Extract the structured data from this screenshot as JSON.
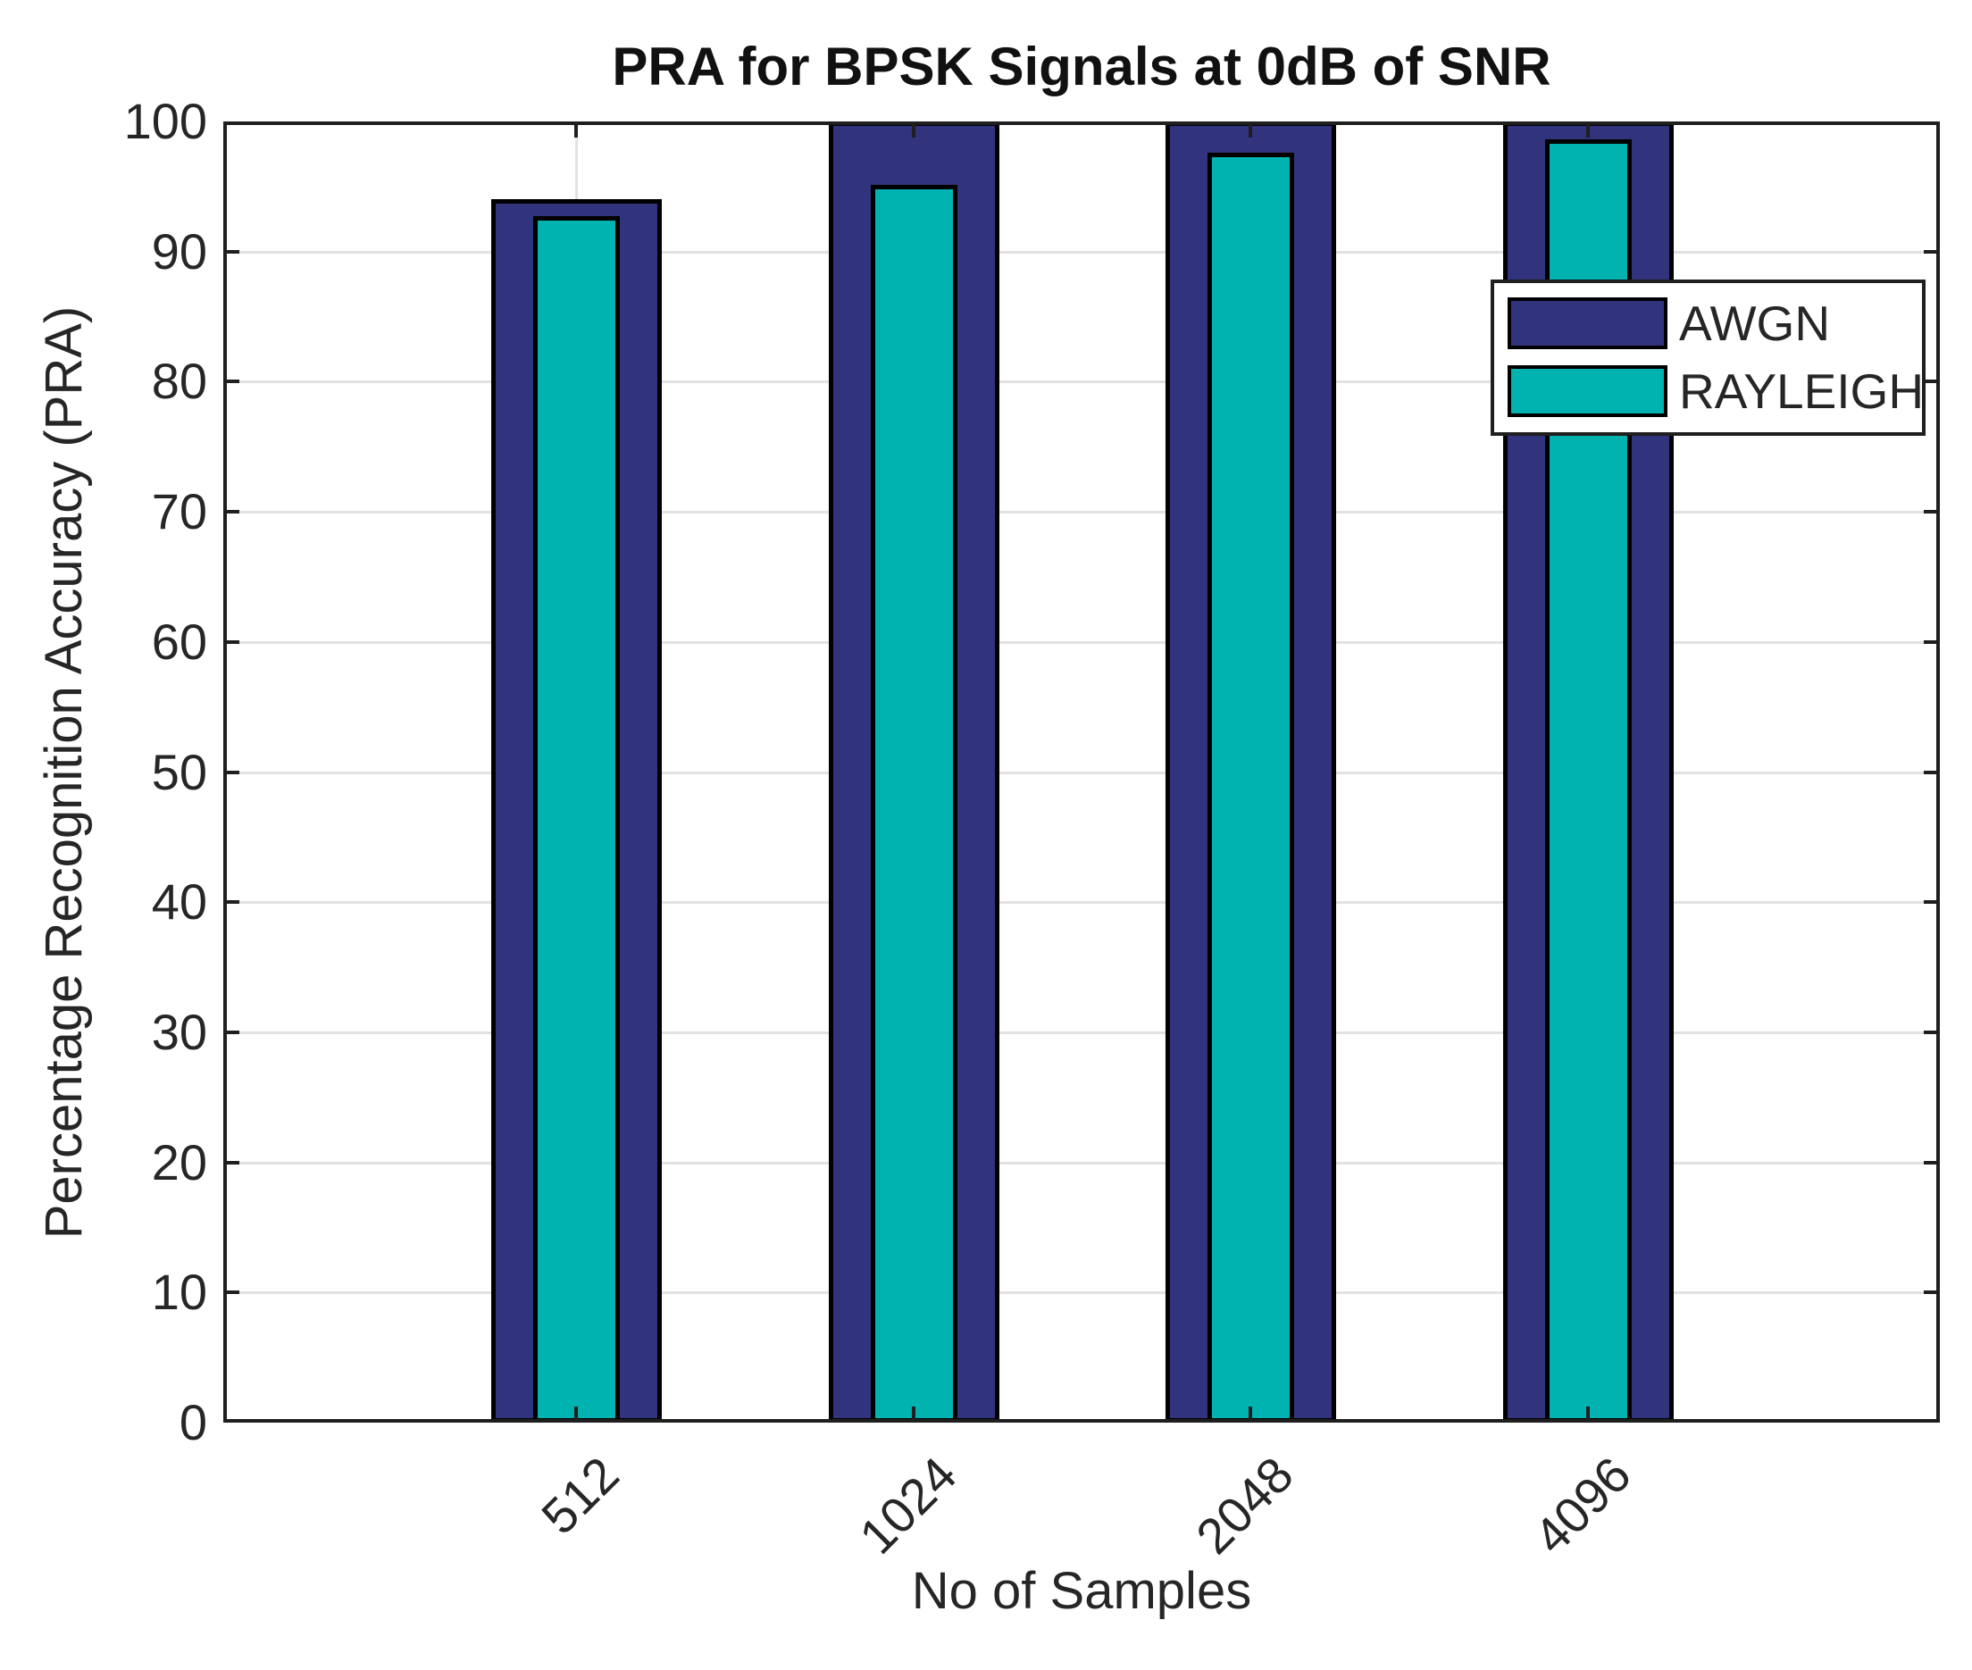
{
  "chart_data": {
    "type": "bar",
    "title": "PRA for BPSK Signals at 0dB of SNR",
    "xlabel": "No of Samples",
    "ylabel": "Percentage Recognition Accuracy (PRA)",
    "categories": [
      "512",
      "1024",
      "2048",
      "4096"
    ],
    "series": [
      {
        "name": "AWGN",
        "color": "#32337d",
        "values": [
          94,
          100,
          100,
          100
        ]
      },
      {
        "name": "RAYLEIGH",
        "color": "#00b2b0",
        "values": [
          92.7,
          95.1,
          97.6,
          98.6
        ]
      }
    ],
    "bar_style": "nested-overlay",
    "ylim": [
      0,
      100
    ],
    "yticks": [
      0,
      10,
      20,
      30,
      40,
      50,
      60,
      70,
      80,
      90,
      100
    ],
    "grid": true,
    "grid_color": "#e2e2e2",
    "axis_color": "#1f1f1f",
    "legend_position": "upper-right",
    "legend_entries": [
      "AWGN",
      "RAYLEIGH"
    ]
  }
}
